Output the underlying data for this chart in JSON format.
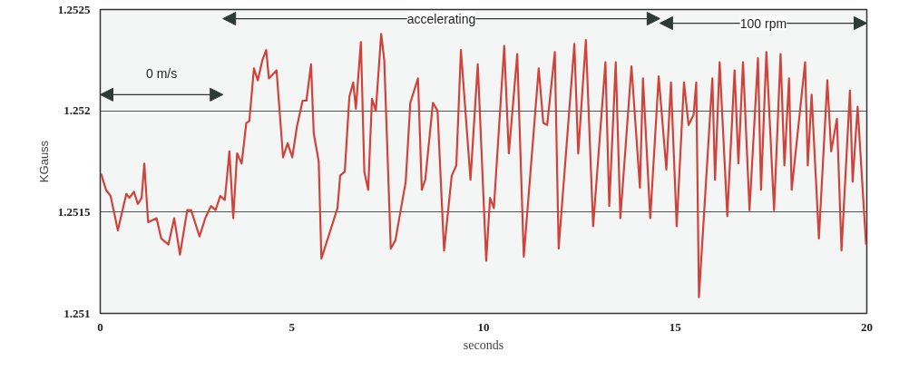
{
  "chart_data": {
    "type": "line",
    "xlabel": "seconds",
    "ylabel": "KGauss",
    "xlim": [
      0,
      20
    ],
    "ylim": [
      1.251,
      1.2525
    ],
    "xticks": [
      0,
      5,
      10,
      15,
      20
    ],
    "yticks": [
      1.251,
      1.2515,
      1.252,
      1.2525
    ],
    "grid": "y",
    "bands": [
      {
        "axis": "x",
        "from": 0,
        "to": 3.2,
        "label": "0 m/s",
        "color": "#2f3a36"
      },
      {
        "axis": "x",
        "from": 3.2,
        "to": 14.6,
        "label": "accelerating",
        "color": "#2f3a36"
      },
      {
        "axis": "x",
        "from": 14.6,
        "to": 20,
        "label": "100 rpm",
        "color": "#2f3a36"
      }
    ],
    "series": [
      {
        "color": "#d9443a",
        "x": [
          0.02,
          0.15,
          0.27,
          0.46,
          0.68,
          0.76,
          0.88,
          0.98,
          1.08,
          1.15,
          1.25,
          1.47,
          1.59,
          1.78,
          1.93,
          2.08,
          2.27,
          2.37,
          2.59,
          2.74,
          2.89,
          3.01,
          3.13,
          3.25,
          3.37,
          3.47,
          3.57,
          3.69,
          3.81,
          3.89,
          4.01,
          4.11,
          4.23,
          4.33,
          4.4,
          4.6,
          4.77,
          4.89,
          5.01,
          5.13,
          5.28,
          5.38,
          5.5,
          5.57,
          5.7,
          5.77,
          6.19,
          6.26,
          6.38,
          6.5,
          6.6,
          6.67,
          6.8,
          6.89,
          6.99,
          7.09,
          7.19,
          7.33,
          7.41,
          7.58,
          7.7,
          7.97,
          8.09,
          8.29,
          8.39,
          8.48,
          8.68,
          8.8,
          8.97,
          9.17,
          9.29,
          9.41,
          9.66,
          9.85,
          10.07,
          10.17,
          10.27,
          10.54,
          10.66,
          10.88,
          11.05,
          11.44,
          11.56,
          11.66,
          11.86,
          11.96,
          12.37,
          12.47,
          12.67,
          12.86,
          13.18,
          13.28,
          13.45,
          13.57,
          13.86,
          14.08,
          14.16,
          14.35,
          14.57,
          14.77,
          14.89,
          15.04,
          15.23,
          15.35,
          15.48,
          15.55,
          15.62,
          15.97,
          16.04,
          16.16,
          16.36,
          16.55,
          16.65,
          16.77,
          16.94,
          17.16,
          17.24,
          17.38,
          17.58,
          17.75,
          17.85,
          17.97,
          18.04,
          18.39,
          18.46,
          18.56,
          18.75,
          18.97,
          19.07,
          19.22,
          19.34,
          19.56,
          19.63,
          19.76,
          19.98
        ],
        "values": [
          1.25169,
          1.25161,
          1.25158,
          1.25141,
          1.25159,
          1.25157,
          1.2516,
          1.25154,
          1.25157,
          1.25174,
          1.25145,
          1.25147,
          1.25137,
          1.25134,
          1.25147,
          1.25129,
          1.25151,
          1.25151,
          1.25138,
          1.25147,
          1.25153,
          1.25151,
          1.25158,
          1.25156,
          1.2518,
          1.25147,
          1.25179,
          1.25174,
          1.25194,
          1.25195,
          1.25221,
          1.25215,
          1.25225,
          1.2523,
          1.25216,
          1.2522,
          1.25177,
          1.25184,
          1.25177,
          1.25192,
          1.25205,
          1.25205,
          1.25223,
          1.25189,
          1.25175,
          1.25127,
          1.25152,
          1.25168,
          1.2517,
          1.25207,
          1.25214,
          1.25201,
          1.25234,
          1.2517,
          1.25161,
          1.25206,
          1.252,
          1.25238,
          1.25225,
          1.25132,
          1.25136,
          1.25165,
          1.25204,
          1.25216,
          1.25161,
          1.25166,
          1.25204,
          1.252,
          1.25131,
          1.25168,
          1.25173,
          1.2523,
          1.25166,
          1.25223,
          1.25126,
          1.25157,
          1.25152,
          1.25232,
          1.25179,
          1.25228,
          1.25128,
          1.25221,
          1.25194,
          1.25193,
          1.25229,
          1.25132,
          1.25233,
          1.25179,
          1.25235,
          1.25143,
          1.25224,
          1.25153,
          1.25224,
          1.25147,
          1.25222,
          1.25162,
          1.25216,
          1.25147,
          1.25217,
          1.25171,
          1.25214,
          1.25143,
          1.25214,
          1.25193,
          1.25198,
          1.25214,
          1.25108,
          1.25216,
          1.25166,
          1.25224,
          1.25148,
          1.2522,
          1.25174,
          1.25224,
          1.25151,
          1.25226,
          1.25161,
          1.25229,
          1.25151,
          1.25228,
          1.25173,
          1.25216,
          1.25161,
          1.25224,
          1.25173,
          1.25208,
          1.25137,
          1.25215,
          1.2518,
          1.25196,
          1.25131,
          1.2521,
          1.25165,
          1.25202,
          1.25134
        ]
      }
    ]
  }
}
